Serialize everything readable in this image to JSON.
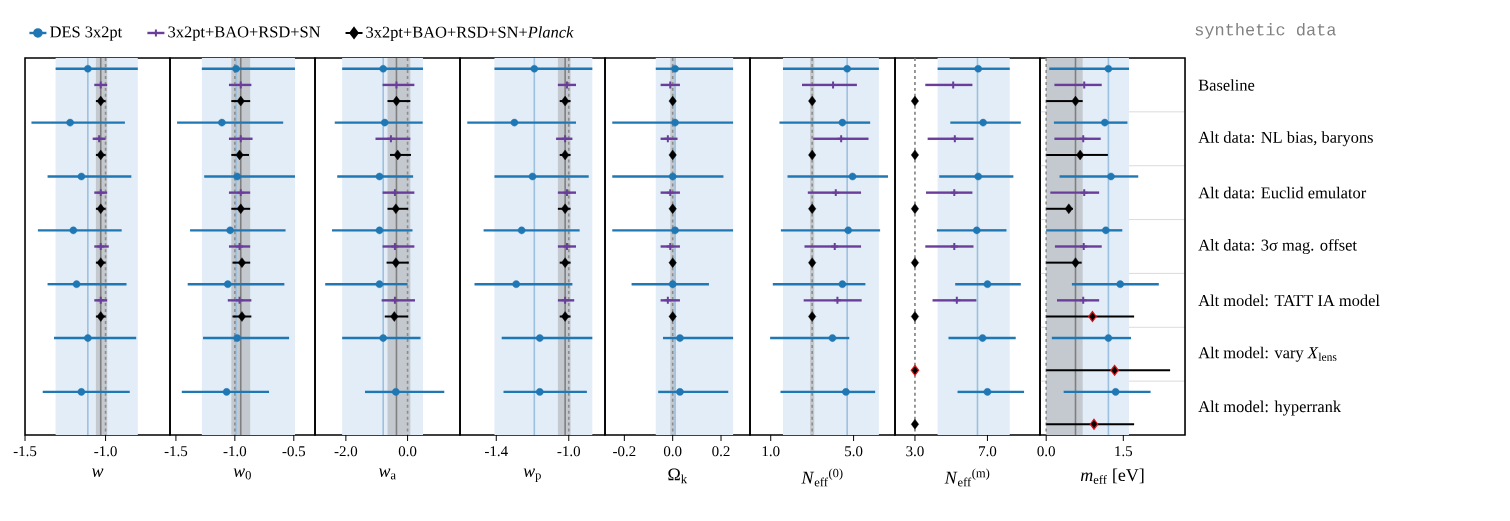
{
  "chart_data": [
    {
      "type": "scatter",
      "orientation": "horizontal",
      "categories": [
        null,
        null,
        null,
        null,
        null,
        null,
        null
      ],
      "xlabel": "*w*",
      "xlim": [
        -1.5,
        -0.6
      ],
      "xticks": [
        {
          "value": -1.5,
          "label": "-1.5"
        },
        {
          "value": -1.0,
          "label": "-1.0"
        }
      ],
      "tick_labels": "x",
      "grid": "y",
      "legend": "top",
      "bands": [
        {
          "axis": "x",
          "from": -1.31,
          "to": -0.8,
          "color": "#e2edf7"
        },
        {
          "axis": "x",
          "from": -1.06,
          "to": -0.99,
          "color": "#c4c9cf"
        }
      ],
      "ref_lines": [
        {
          "axis": "x",
          "value": -1.11,
          "color": "#9cc0df",
          "line_style": "solid"
        },
        {
          "axis": "x",
          "value": -1.03,
          "color": "#7f7f7f",
          "line_style": "solid"
        },
        {
          "axis": "x",
          "value": -1.0,
          "color": "#8c8c8c",
          "line_style": "dashed"
        }
      ],
      "series": [
        {
          "name": "DES 3x2pt",
          "color": "#1f77b4",
          "marker": "circle",
          "values": [
            -1.11,
            -1.22,
            -1.15,
            -1.2,
            -1.18,
            -1.11,
            -1.15
          ],
          "errors": [
            [
              -1.31,
              -0.8
            ],
            [
              -1.46,
              -0.88
            ],
            [
              -1.36,
              -0.84
            ],
            [
              -1.42,
              -0.9
            ],
            [
              -1.36,
              -0.87
            ],
            [
              -1.32,
              -0.81
            ],
            [
              -1.39,
              -0.85
            ]
          ]
        },
        {
          "name": "3x2pt+BAO+RSD+SN",
          "color": "#6a3d9a",
          "marker": "cross",
          "values": [
            -1.03,
            -1.04,
            -1.03,
            -1.03,
            -1.03,
            null,
            null
          ],
          "errors": [
            [
              -1.07,
              -0.99
            ],
            [
              -1.08,
              -1.0
            ],
            [
              -1.07,
              -0.99
            ],
            [
              -1.07,
              -0.98
            ],
            [
              -1.07,
              -0.99
            ],
            null,
            null
          ]
        },
        {
          "name": "3x2pt+BAO+RSD+SN+*Planck*",
          "color": "#000000",
          "marker": "diamond",
          "values": [
            -1.03,
            -1.03,
            -1.03,
            -1.03,
            -1.03,
            null,
            null
          ],
          "errors": [
            [
              -1.06,
              -1.0
            ],
            [
              -1.06,
              -1.0
            ],
            [
              -1.06,
              -1.0
            ],
            [
              -1.06,
              -1.0
            ],
            [
              -1.06,
              -1.0
            ],
            null,
            null
          ]
        }
      ]
    },
    {
      "type": "scatter",
      "orientation": "horizontal",
      "categories": [
        null,
        null,
        null,
        null,
        null,
        null,
        null
      ],
      "xlabel": "*w*$_{0}$",
      "xlim": [
        -1.55,
        -0.32
      ],
      "xticks": [
        {
          "value": -1.5,
          "label": "-1.5"
        },
        {
          "value": -1.0,
          "label": "-1.0"
        },
        {
          "value": -0.5,
          "label": "-0.5"
        }
      ],
      "tick_labels": "x",
      "grid": "y",
      "bands": [
        {
          "axis": "x",
          "from": -1.28,
          "to": -0.49,
          "color": "#e2edf7"
        },
        {
          "axis": "x",
          "from": -1.03,
          "to": -0.87,
          "color": "#c4c9cf"
        }
      ],
      "ref_lines": [
        {
          "axis": "x",
          "value": -0.99,
          "color": "#9cc0df",
          "line_style": "solid"
        },
        {
          "axis": "x",
          "value": -0.95,
          "color": "#7f7f7f",
          "line_style": "solid"
        },
        {
          "axis": "x",
          "value": -1.0,
          "color": "#8c8c8c",
          "line_style": "dashed"
        }
      ],
      "series": [
        {
          "color": "#1f77b4",
          "marker": "circle",
          "values": [
            -0.99,
            -1.11,
            -0.98,
            -1.04,
            -1.06,
            -0.98,
            -1.07
          ],
          "errors": [
            [
              -1.28,
              -0.49
            ],
            [
              -1.49,
              -0.59
            ],
            [
              -1.26,
              -0.49
            ],
            [
              -1.38,
              -0.57
            ],
            [
              -1.4,
              -0.58
            ],
            [
              -1.27,
              -0.54
            ],
            [
              -1.45,
              -0.71
            ]
          ]
        },
        {
          "color": "#6a3d9a",
          "marker": "cross",
          "values": [
            -0.95,
            -0.95,
            -0.95,
            -0.96,
            -0.96,
            null,
            null
          ],
          "errors": [
            [
              -1.05,
              -0.86
            ],
            [
              -1.05,
              -0.85
            ],
            [
              -1.05,
              -0.87
            ],
            [
              -1.05,
              -0.87
            ],
            [
              -1.06,
              -0.86
            ],
            null,
            null
          ]
        },
        {
          "color": "#000000",
          "marker": "diamond",
          "values": [
            -0.95,
            -0.96,
            -0.95,
            -0.94,
            -0.94,
            null,
            null
          ],
          "errors": [
            [
              -1.03,
              -0.87
            ],
            [
              -1.03,
              -0.88
            ],
            [
              -1.03,
              -0.87
            ],
            [
              -1.02,
              -0.87
            ],
            [
              -1.02,
              -0.86
            ],
            null,
            null
          ]
        }
      ]
    },
    {
      "type": "scatter",
      "orientation": "horizontal",
      "categories": [
        null,
        null,
        null,
        null,
        null,
        null,
        null
      ],
      "xlabel": "*w*$_{a}$",
      "xlim": [
        -3.0,
        1.7
      ],
      "xticks": [
        {
          "value": -2.0,
          "label": "-2.0"
        },
        {
          "value": 0.0,
          "label": "0.0"
        }
      ],
      "tick_labels": "x",
      "grid": "y",
      "bands": [
        {
          "axis": "x",
          "from": -2.12,
          "to": 0.5,
          "color": "#e2edf7"
        },
        {
          "axis": "x",
          "from": -0.65,
          "to": 0.09,
          "color": "#c4c9cf"
        }
      ],
      "ref_lines": [
        {
          "axis": "x",
          "value": -0.79,
          "color": "#9cc0df",
          "line_style": "solid"
        },
        {
          "axis": "x",
          "value": -0.36,
          "color": "#7f7f7f",
          "line_style": "solid"
        },
        {
          "axis": "x",
          "value": 0.0,
          "color": "#8c8c8c",
          "line_style": "dashed"
        }
      ],
      "series": [
        {
          "color": "#1f77b4",
          "marker": "circle",
          "values": [
            -0.79,
            -0.74,
            -0.91,
            -0.91,
            -0.91,
            -0.79,
            -0.38
          ],
          "errors": [
            [
              -2.12,
              0.5
            ],
            [
              -2.36,
              0.49
            ],
            [
              -2.28,
              0.18
            ],
            [
              -2.45,
              0.16
            ],
            [
              -2.67,
              0.0
            ],
            [
              -2.12,
              0.42
            ],
            [
              -1.38,
              1.19
            ]
          ]
        },
        {
          "color": "#6a3d9a",
          "marker": "cross",
          "values": [
            -0.36,
            -0.54,
            -0.41,
            -0.41,
            -0.41,
            null,
            null
          ],
          "errors": [
            [
              -0.81,
              0.22
            ],
            [
              -1.04,
              0.09
            ],
            [
              -0.81,
              0.22
            ],
            [
              -0.81,
              0.22
            ],
            [
              -0.84,
              0.24
            ],
            null,
            null
          ]
        },
        {
          "color": "#000000",
          "marker": "diamond",
          "values": [
            -0.36,
            -0.32,
            -0.38,
            -0.38,
            -0.43,
            null,
            null
          ],
          "errors": [
            [
              -0.65,
              0.09
            ],
            [
              -0.57,
              0.11
            ],
            [
              -0.65,
              0.02
            ],
            [
              -0.68,
              0.04
            ],
            [
              -0.74,
              0.02
            ],
            null,
            null
          ]
        }
      ]
    },
    {
      "type": "scatter",
      "orientation": "horizontal",
      "categories": [
        null,
        null,
        null,
        null,
        null,
        null,
        null
      ],
      "xlabel": "*w*$_{p}$",
      "xlim": [
        -1.6,
        -0.8
      ],
      "xticks": [
        {
          "value": -1.4,
          "label": "-1.4"
        },
        {
          "value": -1.0,
          "label": "-1.0"
        }
      ],
      "tick_labels": "x",
      "grid": "y",
      "bands": [
        {
          "axis": "x",
          "from": -1.41,
          "to": -0.87,
          "color": "#e2edf7"
        },
        {
          "axis": "x",
          "from": -1.06,
          "to": -0.99,
          "color": "#c4c9cf"
        }
      ],
      "ref_lines": [
        {
          "axis": "x",
          "value": -1.19,
          "color": "#9cc0df",
          "line_style": "solid"
        },
        {
          "axis": "x",
          "value": -1.02,
          "color": "#7f7f7f",
          "line_style": "solid"
        },
        {
          "axis": "x",
          "value": -1.0,
          "color": "#8c8c8c",
          "line_style": "dashed"
        }
      ],
      "series": [
        {
          "color": "#1f77b4",
          "marker": "circle",
          "values": [
            -1.19,
            -1.3,
            -1.2,
            -1.26,
            -1.29,
            -1.16,
            -1.16
          ],
          "errors": [
            [
              -1.41,
              -0.87
            ],
            [
              -1.56,
              -0.96
            ],
            [
              -1.41,
              -0.89
            ],
            [
              -1.47,
              -0.94
            ],
            [
              -1.52,
              -0.98
            ],
            [
              -1.37,
              -0.87
            ],
            [
              -1.36,
              -0.9
            ]
          ]
        },
        {
          "color": "#6a3d9a",
          "marker": "cross",
          "values": [
            -1.01,
            -1.02,
            -1.01,
            -1.01,
            -1.02,
            null,
            null
          ],
          "errors": [
            [
              -1.06,
              -0.96
            ],
            [
              -1.07,
              -0.98
            ],
            [
              -1.06,
              -0.96
            ],
            [
              -1.06,
              -0.96
            ],
            [
              -1.06,
              -0.97
            ],
            null,
            null
          ]
        },
        {
          "color": "#000000",
          "marker": "diamond",
          "values": [
            -1.02,
            -1.02,
            -1.02,
            -1.02,
            -1.02,
            null,
            null
          ],
          "errors": [
            [
              -1.05,
              -0.99
            ],
            [
              -1.05,
              -0.99
            ],
            [
              -1.06,
              -0.99
            ],
            [
              -1.05,
              -0.99
            ],
            [
              -1.05,
              -0.99
            ],
            null,
            null
          ]
        }
      ]
    },
    {
      "type": "scatter",
      "orientation": "horizontal",
      "categories": [
        null,
        null,
        null,
        null,
        null,
        null,
        null
      ],
      "xlabel": "Ω$_{k}$",
      "xlim": [
        -0.28,
        0.32
      ],
      "xticks": [
        {
          "value": -0.2,
          "label": "-0.2"
        },
        {
          "value": 0.0,
          "label": "0.0"
        },
        {
          "value": 0.2,
          "label": "0.2"
        }
      ],
      "tick_labels": "x",
      "grid": "y",
      "bands": [
        {
          "axis": "x",
          "from": -0.07,
          "to": 0.25,
          "color": "#e2edf7"
        },
        {
          "axis": "x",
          "from": -0.01,
          "to": 0.01,
          "color": "#c4c9cf"
        }
      ],
      "ref_lines": [
        {
          "axis": "x",
          "value": 0.01,
          "color": "#9cc0df",
          "line_style": "solid"
        },
        {
          "axis": "x",
          "value": 0.0,
          "color": "#8c8c8c",
          "line_style": "dashed"
        }
      ],
      "series": [
        {
          "color": "#1f77b4",
          "marker": "circle",
          "values": [
            0.01,
            0.01,
            0.0,
            0.01,
            0.0,
            0.03,
            0.03
          ],
          "errors": [
            [
              -0.07,
              0.25
            ],
            [
              -0.25,
              0.25
            ],
            [
              -0.25,
              0.21
            ],
            [
              -0.25,
              0.25
            ],
            [
              -0.17,
              0.15
            ],
            [
              -0.04,
              0.25
            ],
            [
              -0.06,
              0.23
            ]
          ]
        },
        {
          "color": "#6a3d9a",
          "marker": "cross",
          "values": [
            -0.01,
            -0.02,
            -0.01,
            -0.01,
            -0.02,
            null,
            null
          ],
          "errors": [
            [
              -0.05,
              0.03
            ],
            [
              -0.05,
              0.02
            ],
            [
              -0.05,
              0.03
            ],
            [
              -0.05,
              0.03
            ],
            [
              -0.05,
              0.03
            ],
            null,
            null
          ]
        },
        {
          "color": "#000000",
          "marker": "diamond",
          "values": [
            0.0,
            0.0,
            0.0,
            0.0,
            0.0,
            null,
            null
          ]
        }
      ]
    },
    {
      "type": "scatter",
      "orientation": "horizontal",
      "categories": [
        null,
        null,
        null,
        null,
        null,
        null,
        null
      ],
      "xlabel": "*N*$_{eff}$$^{(0)}$",
      "xlim": [
        0.0,
        7.0
      ],
      "xticks": [
        {
          "value": 1.0,
          "label": "1.0"
        },
        {
          "value": 5.0,
          "label": "5.0"
        }
      ],
      "tick_labels": "x",
      "grid": "y",
      "bands": [
        {
          "axis": "x",
          "from": 1.59,
          "to": 6.22,
          "color": "#e2edf7"
        },
        {
          "axis": "x",
          "from": 2.9,
          "to": 3.1,
          "color": "#c4c9cf"
        }
      ],
      "ref_lines": [
        {
          "axis": "x",
          "value": 4.69,
          "color": "#9cc0df",
          "line_style": "solid"
        },
        {
          "axis": "x",
          "value": 3.0,
          "color": "#8c8c8c",
          "line_style": "dashed"
        }
      ],
      "series": [
        {
          "color": "#1f77b4",
          "marker": "circle",
          "values": [
            4.69,
            4.46,
            4.95,
            4.74,
            4.46,
            3.98,
            4.63
          ],
          "errors": [
            [
              1.59,
              6.22
            ],
            [
              1.42,
              5.8
            ],
            [
              1.81,
              6.66
            ],
            [
              1.49,
              6.28
            ],
            [
              1.1,
              5.57
            ],
            [
              0.97,
              4.79
            ],
            [
              1.47,
              6.04
            ]
          ]
        },
        {
          "color": "#6a3d9a",
          "marker": "cross",
          "values": [
            4.01,
            4.4,
            4.14,
            4.09,
            4.22,
            null,
            null
          ],
          "errors": [
            [
              2.51,
              5.16
            ],
            [
              3.05,
              5.72
            ],
            [
              2.79,
              5.36
            ],
            [
              2.63,
              5.36
            ],
            [
              2.59,
              5.39
            ],
            null,
            null
          ]
        },
        {
          "color": "#000000",
          "marker": "diamond",
          "values": [
            3.0,
            3.0,
            3.0,
            3.0,
            3.0,
            null,
            null
          ]
        }
      ]
    },
    {
      "type": "scatter",
      "orientation": "horizontal",
      "categories": [
        null,
        null,
        null,
        null,
        null,
        null,
        null
      ],
      "xlabel": "*N*$_{eff}$$^{(m)}$",
      "xlim": [
        1.9,
        9.9
      ],
      "xticks": [
        {
          "value": 3.0,
          "label": "3.0"
        },
        {
          "value": 7.0,
          "label": "7.0"
        }
      ],
      "tick_labels": "x",
      "grid": "y",
      "bands": [
        {
          "axis": "x",
          "from": 4.25,
          "to": 8.23,
          "color": "#e2edf7"
        }
      ],
      "ref_lines": [
        {
          "axis": "x",
          "value": 6.45,
          "color": "#9cc0df",
          "line_style": "solid"
        },
        {
          "axis": "x",
          "value": 3.0,
          "color": "#7f7f7f",
          "line_style": "dashed"
        }
      ],
      "series": [
        {
          "color": "#1f77b4",
          "marker": "circle",
          "values": [
            6.49,
            6.76,
            6.49,
            6.41,
            7.0,
            6.73,
            7.0
          ],
          "errors": [
            [
              4.25,
              8.23
            ],
            [
              4.95,
              8.84
            ],
            [
              4.34,
              8.43
            ],
            [
              4.21,
              8.05
            ],
            [
              5.22,
              8.84
            ],
            [
              4.85,
              8.56
            ],
            [
              5.35,
              9.02
            ]
          ]
        },
        {
          "color": "#6a3d9a",
          "marker": "cross",
          "values": [
            5.11,
            5.2,
            5.17,
            5.17,
            5.31,
            null,
            null
          ],
          "errors": [
            [
              3.57,
              6.17
            ],
            [
              3.7,
              6.23
            ],
            [
              3.61,
              6.17
            ],
            [
              3.57,
              6.23
            ],
            [
              3.97,
              6.39
            ],
            null,
            null
          ]
        },
        {
          "color": "#000000",
          "marker": "diamond",
          "values": [
            3.0,
            3.0,
            3.0,
            3.0,
            3.0,
            3.0,
            3.0
          ],
          "colors": [
            "#000000",
            "#000000",
            "#000000",
            "#000000",
            "#000000",
            "#e8141b",
            "#000000"
          ]
        }
      ]
    },
    {
      "type": "scatter",
      "orientation": "horizontal",
      "categories": [
        "Baseline",
        "Alt data: NL bias, baryons",
        "Alt data: Euclid emulator",
        "Alt data: 3σ mag. offset",
        "Alt model: TATT IA model",
        "Alt model: vary *X*$_{lens}$",
        "Alt model: hyperrank"
      ],
      "title": "synthetic data",
      "xlabel": "*m*$_{eff}$ [eV]",
      "xlim": [
        -0.12,
        2.7
      ],
      "xticks": [
        {
          "value": 0.0,
          "label": "0.0"
        },
        {
          "value": 1.5,
          "label": "1.5"
        }
      ],
      "grid": "y",
      "bands": [
        {
          "axis": "x",
          "from": 0.06,
          "to": 1.61,
          "color": "#e2edf7"
        },
        {
          "axis": "x",
          "from": 0.0,
          "to": 0.71,
          "color": "#c4c9cf"
        }
      ],
      "ref_lines": [
        {
          "axis": "x",
          "value": 1.21,
          "color": "#9cc0df",
          "line_style": "solid"
        },
        {
          "axis": "x",
          "value": 0.57,
          "color": "#7f7f7f",
          "line_style": "solid"
        },
        {
          "axis": "x",
          "value": 0.0,
          "color": "#8c8c8c",
          "line_style": "dashed"
        }
      ],
      "series": [
        {
          "color": "#1f77b4",
          "marker": "circle",
          "values": [
            1.21,
            1.14,
            1.26,
            1.16,
            1.44,
            1.21,
            1.35
          ],
          "errors": [
            [
              0.06,
              1.61
            ],
            [
              0.15,
              1.58
            ],
            [
              0.26,
              1.79
            ],
            [
              0.0,
              1.48
            ],
            [
              0.5,
              2.19
            ],
            [
              0.11,
              1.65
            ],
            [
              0.34,
              2.03
            ]
          ]
        },
        {
          "color": "#6a3d9a",
          "marker": "cross",
          "values": [
            0.74,
            0.72,
            0.74,
            0.73,
            0.72,
            null,
            null
          ],
          "errors": [
            [
              0.16,
              1.08
            ],
            [
              0.16,
              1.06
            ],
            [
              0.08,
              1.03
            ],
            [
              0.17,
              1.08
            ],
            [
              0.21,
              1.03
            ],
            null,
            null
          ]
        },
        {
          "color": "#000000",
          "marker": "diamond",
          "values": [
            0.57,
            0.66,
            0.44,
            0.57,
            0.9,
            1.33,
            0.93
          ],
          "errors": [
            [
              0.0,
              0.71
            ],
            [
              0.0,
              1.2
            ],
            [
              0.0,
              0.52
            ],
            [
              0.0,
              0.69
            ],
            [
              0.0,
              1.71
            ],
            [
              0.0,
              2.41
            ],
            [
              0.0,
              1.71
            ]
          ],
          "colors": [
            "#000000",
            "#000000",
            "#000000",
            "#000000",
            "#e8141b",
            "#e8141b",
            "#e8141b"
          ]
        }
      ]
    }
  ]
}
